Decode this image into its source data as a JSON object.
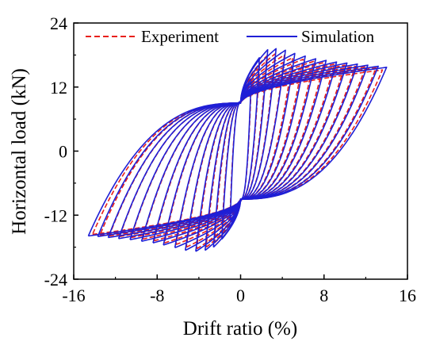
{
  "chart_data": {
    "type": "line",
    "title": "",
    "xlabel": "Drift ratio (%)",
    "ylabel": "Horizontal load (kN)",
    "xlim": [
      -16,
      16
    ],
    "ylim": [
      -24,
      24
    ],
    "xticks": [
      -16,
      -8,
      0,
      8,
      16
    ],
    "yticks": [
      -24,
      -12,
      0,
      12,
      24
    ],
    "xtick_labels": [
      "-16",
      "-8",
      "0",
      "8",
      "16"
    ],
    "ytick_labels": [
      "-24",
      "-12",
      "0",
      "12",
      "24"
    ],
    "grid": false,
    "legend_position": "top",
    "series": [
      {
        "name": "Experiment",
        "style": "dashed",
        "color": "#e8201a",
        "cycles": [
          {
            "x_peak": 1.0,
            "y_peak": 11.5,
            "x_valley": -1.0,
            "y_valley": -11.5
          },
          {
            "x_peak": 1.8,
            "y_peak": 16.0,
            "x_valley": -1.8,
            "y_valley": -15.0
          },
          {
            "x_peak": 2.5,
            "y_peak": 17.8,
            "x_valley": -2.5,
            "y_valley": -17.2
          },
          {
            "x_peak": 3.3,
            "y_peak": 18.2,
            "x_valley": -3.3,
            "y_valley": -18.0
          },
          {
            "x_peak": 4.2,
            "y_peak": 18.0,
            "x_valley": -4.2,
            "y_valley": -18.3
          },
          {
            "x_peak": 5.0,
            "y_peak": 17.5,
            "x_valley": -5.2,
            "y_valley": -18.0
          },
          {
            "x_peak": 6.0,
            "y_peak": 17.2,
            "x_valley": -6.2,
            "y_valley": -17.5
          },
          {
            "x_peak": 7.0,
            "y_peak": 16.8,
            "x_valley": -7.3,
            "y_valley": -17.2
          },
          {
            "x_peak": 8.0,
            "y_peak": 16.6,
            "x_valley": -8.3,
            "y_valley": -16.8
          },
          {
            "x_peak": 9.0,
            "y_peak": 16.3,
            "x_valley": -9.4,
            "y_valley": -16.5
          },
          {
            "x_peak": 10.0,
            "y_peak": 16.1,
            "x_valley": -10.5,
            "y_valley": -16.2
          },
          {
            "x_peak": 11.0,
            "y_peak": 15.9,
            "x_valley": -11.6,
            "y_valley": -16.0
          },
          {
            "x_peak": 12.0,
            "y_peak": 15.8,
            "x_valley": -12.6,
            "y_valley": -15.9
          },
          {
            "x_peak": 13.0,
            "y_peak": 15.6,
            "x_valley": -13.5,
            "y_valley": -15.8
          },
          {
            "x_peak": 13.6,
            "y_peak": 15.2,
            "x_valley": -14.2,
            "y_valley": -15.6
          }
        ]
      },
      {
        "name": "Simulation",
        "style": "solid",
        "color": "#1f1fd6",
        "cycles": [
          {
            "x_peak": 1.0,
            "y_peak": 13.0,
            "x_valley": -1.0,
            "y_valley": -13.0
          },
          {
            "x_peak": 1.8,
            "y_peak": 17.5,
            "x_valley": -1.8,
            "y_valley": -16.5
          },
          {
            "x_peak": 2.6,
            "y_peak": 19.0,
            "x_valley": -2.6,
            "y_valley": -18.0
          },
          {
            "x_peak": 3.4,
            "y_peak": 19.2,
            "x_valley": -3.4,
            "y_valley": -18.6
          },
          {
            "x_peak": 4.3,
            "y_peak": 18.9,
            "x_valley": -4.3,
            "y_valley": -18.8
          },
          {
            "x_peak": 5.2,
            "y_peak": 18.3,
            "x_valley": -5.3,
            "y_valley": -18.6
          },
          {
            "x_peak": 6.2,
            "y_peak": 17.8,
            "x_valley": -6.3,
            "y_valley": -18.1
          },
          {
            "x_peak": 7.2,
            "y_peak": 17.3,
            "x_valley": -7.4,
            "y_valley": -17.6
          },
          {
            "x_peak": 8.2,
            "y_peak": 17.0,
            "x_valley": -8.4,
            "y_valley": -17.2
          },
          {
            "x_peak": 9.2,
            "y_peak": 16.7,
            "x_valley": -9.5,
            "y_valley": -16.9
          },
          {
            "x_peak": 10.2,
            "y_peak": 16.5,
            "x_valley": -10.6,
            "y_valley": -16.6
          },
          {
            "x_peak": 11.2,
            "y_peak": 16.3,
            "x_valley": -11.7,
            "y_valley": -16.4
          },
          {
            "x_peak": 12.2,
            "y_peak": 16.1,
            "x_valley": -12.7,
            "y_valley": -16.2
          },
          {
            "x_peak": 13.2,
            "y_peak": 15.9,
            "x_valley": -13.7,
            "y_valley": -16.0
          },
          {
            "x_peak": 14.0,
            "y_peak": 15.7,
            "x_valley": -14.6,
            "y_valley": -15.9
          }
        ]
      }
    ]
  }
}
